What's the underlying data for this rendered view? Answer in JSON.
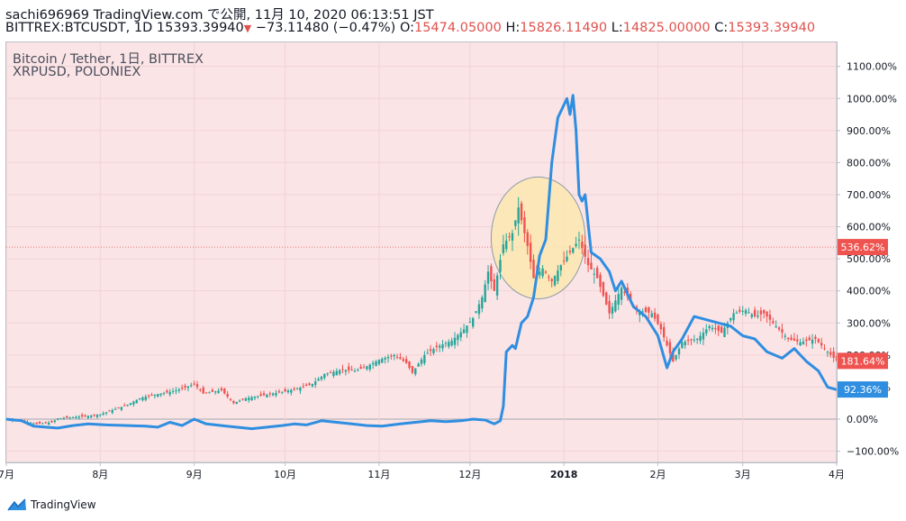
{
  "header": {
    "line1": "sachi696969 TradingView.com で公開, 11月 10, 2020 06:13:51 JST",
    "symbol": "BITTREX:BTCUSDT, 1D",
    "last": "15393.39940",
    "change": "−73.11480 (−0.47%)",
    "o_label": "O:",
    "o_value": "15474.05000",
    "h_label": "H:",
    "h_value": "15826.11490",
    "l_label": "L:",
    "l_value": "14825.00000",
    "c_label": "C:",
    "c_value": "15393.39940"
  },
  "legend": {
    "main": "Bitcoin / Tether, 1日, BITTREX",
    "compare": "XRPUSD, POLONIEX"
  },
  "footer": {
    "brand": "TradingView"
  },
  "colors": {
    "plot_bg": "#fbe4e6",
    "ellipse_fill": "#fbe7b3",
    "btc_up": "#26a69a",
    "btc_down": "#ef5350",
    "xrp": "#2f8ee0",
    "badge_btc": "#ef5350",
    "badge_xrp": "#2f8ee0",
    "hline": "#e57373"
  },
  "chart_data": {
    "type": "line",
    "scale": "percent",
    "y_ticks": [
      "1100.00%",
      "1000.00%",
      "900.00%",
      "800.00%",
      "700.00%",
      "600.00%",
      "500.00%",
      "400.00%",
      "300.00%",
      "200.00%",
      "100.00%",
      "0.00%",
      "−100.00%"
    ],
    "y_tick_values": [
      1100,
      1000,
      900,
      800,
      700,
      600,
      500,
      400,
      300,
      200,
      100,
      0,
      -100
    ],
    "x_ticks": [
      "7月",
      "8月",
      "9月",
      "10月",
      "11月",
      "12月",
      "2018",
      "2月",
      "3月",
      "4月"
    ],
    "x_tick_dates": [
      "2017-07-01",
      "2017-08-01",
      "2017-09-01",
      "2017-10-01",
      "2017-11-01",
      "2017-12-01",
      "2018-01-01",
      "2018-02-01",
      "2018-03-01",
      "2018-04-01"
    ],
    "x_range": [
      "2017-07-01",
      "2018-04-01"
    ],
    "ylim": [
      -135,
      1175
    ],
    "reference_line": {
      "value": 536.62,
      "label": "536.62%"
    },
    "last_values": [
      {
        "series": "BITTREX:BTCUSDT",
        "label": "181.64%",
        "value": 181.64
      },
      {
        "series": "XRPUSD",
        "label": "92.36%",
        "value": 92.36
      }
    ],
    "annotation": {
      "type": "ellipse",
      "from": "2017-12-08",
      "to": "2018-01-08",
      "y_low": 375,
      "y_high": 755
    },
    "series": [
      {
        "name": "Bitcoin / Tether, 1日, BITTREX",
        "style": "candlestick",
        "dates": [
          "2017-07-01",
          "2017-07-06",
          "2017-07-11",
          "2017-07-16",
          "2017-07-18",
          "2017-07-22",
          "2017-07-28",
          "2017-08-01",
          "2017-08-05",
          "2017-08-10",
          "2017-08-14",
          "2017-08-18",
          "2017-08-24",
          "2017-08-28",
          "2017-09-01",
          "2017-09-04",
          "2017-09-10",
          "2017-09-14",
          "2017-09-18",
          "2017-09-24",
          "2017-09-30",
          "2017-10-05",
          "2017-10-10",
          "2017-10-14",
          "2017-10-20",
          "2017-10-24",
          "2017-10-28",
          "2017-11-01",
          "2017-11-06",
          "2017-11-10",
          "2017-11-12",
          "2017-11-16",
          "2017-11-20",
          "2017-11-25",
          "2017-11-29",
          "2017-12-02",
          "2017-12-05",
          "2017-12-07",
          "2017-12-09",
          "2017-12-12",
          "2017-12-15",
          "2017-12-17",
          "2017-12-20",
          "2017-12-22",
          "2017-12-25",
          "2017-12-28",
          "2017-12-31",
          "2018-01-03",
          "2018-01-06",
          "2018-01-09",
          "2018-01-12",
          "2018-01-16",
          "2018-01-20",
          "2018-01-25",
          "2018-01-30",
          "2018-02-02",
          "2018-02-06",
          "2018-02-09",
          "2018-02-14",
          "2018-02-18",
          "2018-02-22",
          "2018-02-26",
          "2018-03-02",
          "2018-03-05",
          "2018-03-08",
          "2018-03-12",
          "2018-03-16",
          "2018-03-20",
          "2018-03-25",
          "2018-03-29",
          "2018-04-01"
        ],
        "values": [
          0,
          -5,
          -15,
          -10,
          2,
          5,
          10,
          15,
          28,
          45,
          65,
          75,
          85,
          95,
          110,
          80,
          90,
          50,
          65,
          75,
          85,
          95,
          110,
          140,
          155,
          150,
          165,
          185,
          200,
          175,
          145,
          200,
          225,
          245,
          280,
          315,
          380,
          460,
          400,
          545,
          580,
          660,
          540,
          440,
          470,
          430,
          480,
          520,
          560,
          480,
          440,
          330,
          410,
          340,
          330,
          280,
          180,
          240,
          250,
          290,
          270,
          330,
          340,
          320,
          330,
          290,
          250,
          240,
          250,
          210,
          182
        ]
      },
      {
        "name": "XRPUSD, POLONIEX",
        "style": "line",
        "dates": [
          "2017-07-01",
          "2017-07-06",
          "2017-07-10",
          "2017-07-14",
          "2017-07-18",
          "2017-07-23",
          "2017-07-28",
          "2017-08-03",
          "2017-08-10",
          "2017-08-16",
          "2017-08-20",
          "2017-08-24",
          "2017-08-28",
          "2017-09-01",
          "2017-09-05",
          "2017-09-10",
          "2017-09-15",
          "2017-09-20",
          "2017-09-25",
          "2017-09-30",
          "2017-10-04",
          "2017-10-08",
          "2017-10-13",
          "2017-10-18",
          "2017-10-23",
          "2017-10-28",
          "2017-11-02",
          "2017-11-08",
          "2017-11-13",
          "2017-11-18",
          "2017-11-23",
          "2017-11-28",
          "2017-12-02",
          "2017-12-06",
          "2017-12-09",
          "2017-12-11",
          "2017-12-12",
          "2017-12-13",
          "2017-12-15",
          "2017-12-16",
          "2017-12-18",
          "2017-12-20",
          "2017-12-22",
          "2017-12-24",
          "2017-12-26",
          "2017-12-28",
          "2017-12-30",
          "2018-01-02",
          "2018-01-03",
          "2018-01-04",
          "2018-01-05",
          "2018-01-06",
          "2018-01-07",
          "2018-01-08",
          "2018-01-10",
          "2018-01-13",
          "2018-01-16",
          "2018-01-18",
          "2018-01-20",
          "2018-01-24",
          "2018-01-28",
          "2018-02-01",
          "2018-02-04",
          "2018-02-06",
          "2018-02-09",
          "2018-02-13",
          "2018-02-17",
          "2018-02-21",
          "2018-02-25",
          "2018-03-01",
          "2018-03-05",
          "2018-03-09",
          "2018-03-14",
          "2018-03-18",
          "2018-03-22",
          "2018-03-26",
          "2018-03-29",
          "2018-04-01"
        ],
        "values": [
          0,
          -5,
          -22,
          -25,
          -28,
          -20,
          -15,
          -18,
          -20,
          -22,
          -25,
          -10,
          -20,
          0,
          -15,
          -20,
          -25,
          -30,
          -25,
          -20,
          -15,
          -18,
          -5,
          -10,
          -15,
          -20,
          -22,
          -15,
          -10,
          -5,
          -8,
          -5,
          0,
          -3,
          -15,
          -5,
          40,
          210,
          230,
          220,
          300,
          320,
          380,
          510,
          560,
          800,
          940,
          1000,
          950,
          1010,
          900,
          700,
          680,
          700,
          520,
          500,
          460,
          400,
          430,
          350,
          320,
          260,
          160,
          210,
          250,
          320,
          310,
          300,
          290,
          260,
          250,
          210,
          190,
          220,
          180,
          150,
          100,
          92
        ]
      }
    ]
  }
}
